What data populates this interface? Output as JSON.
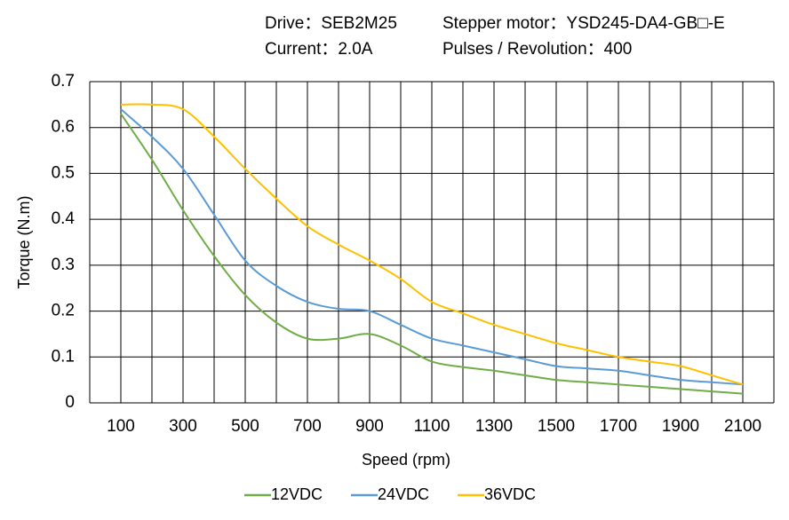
{
  "chart_data": {
    "type": "line",
    "annotations": [
      "Drive：SEB2M25",
      "Stepper  motor：YSD245-DA4-GB□-E",
      "Current：2.0A",
      "Pulses / Revolution：400"
    ],
    "x_label": "Speed  (rpm)",
    "y_label": "Torque (N.m)",
    "x": [
      100,
      200,
      300,
      400,
      500,
      600,
      700,
      800,
      900,
      1000,
      1100,
      1200,
      1300,
      1400,
      1500,
      1600,
      1700,
      1800,
      1900,
      2000,
      2100
    ],
    "series": [
      {
        "name": "12VDC",
        "color": "#70ad47",
        "values": [
          0.63,
          0.53,
          0.42,
          0.32,
          0.235,
          0.175,
          0.14,
          0.14,
          0.15,
          0.125,
          0.09,
          0.078,
          0.07,
          0.06,
          0.05,
          0.045,
          0.04,
          0.035,
          0.03,
          0.025,
          0.02
        ]
      },
      {
        "name": "24VDC",
        "color": "#5b9bd5",
        "values": [
          0.64,
          0.58,
          0.51,
          0.41,
          0.31,
          0.255,
          0.22,
          0.205,
          0.2,
          0.17,
          0.14,
          0.125,
          0.11,
          0.095,
          0.08,
          0.075,
          0.07,
          0.06,
          0.05,
          0.045,
          0.04
        ]
      },
      {
        "name": "36VDC",
        "color": "#ffc000",
        "values": [
          0.65,
          0.65,
          0.64,
          0.58,
          0.51,
          0.445,
          0.385,
          0.345,
          0.31,
          0.27,
          0.22,
          0.195,
          0.17,
          0.15,
          0.13,
          0.115,
          0.1,
          0.09,
          0.08,
          0.06,
          0.04
        ]
      }
    ],
    "xlim": [
      0,
      2200
    ],
    "xticks": [
      100,
      300,
      500,
      700,
      900,
      1100,
      1300,
      1500,
      1700,
      1900,
      2100
    ],
    "ylim": [
      0,
      0.7
    ],
    "yticks": [
      0,
      0.1,
      0.2,
      0.3,
      0.4,
      0.5,
      0.6,
      0.7
    ],
    "grid": true,
    "legend": "bottom"
  }
}
